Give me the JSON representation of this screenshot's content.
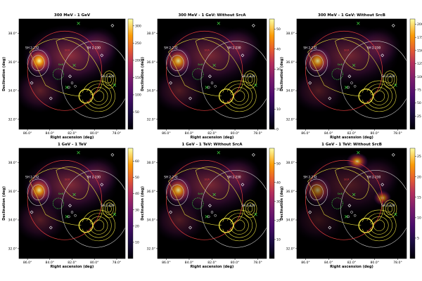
{
  "colors": {
    "background": "#000000",
    "contour_yellow": "#e6dc3c",
    "contour_grey": "#c8c8c8",
    "circle_red": "#e23c3c",
    "marker_green": "#3fd23f",
    "marker_white": "#ffffff",
    "label_white": "#ffffff"
  },
  "chart_data": [
    {
      "type": "heatmap",
      "title": "300 MeV - 1 GeV",
      "xlabel": "Right ascension (deg)",
      "ylabel": "Declination (deg)",
      "x_ticks": [
        "86.0°",
        "84.0°",
        "82.0°",
        "80.0°",
        "78.0°"
      ],
      "y_ticks": [
        "38.0°",
        "36.0°",
        "34.0°",
        "32.0°"
      ],
      "colorbar_ticks": [
        "300",
        "250",
        "200",
        "150",
        "100",
        "50"
      ],
      "colorbar_range": [
        0,
        320
      ],
      "labels": [
        "SH 2-232",
        "SH 2-230",
        "SH 2-229",
        "SrcA",
        "SrcB"
      ]
    },
    {
      "type": "heatmap",
      "title": "300 MeV - 1 GeV: Without SrcA",
      "xlabel": "Right ascension (deg)",
      "ylabel": "Declination (deg)",
      "x_ticks": [
        "86.0°",
        "84.0°",
        "82.0°",
        "80.0°",
        "78.0°"
      ],
      "y_ticks": [
        "38.0°",
        "36.0°",
        "34.0°",
        "32.0°"
      ],
      "colorbar_ticks": [
        "50",
        "40",
        "30",
        "20",
        "10",
        "0"
      ],
      "colorbar_range": [
        0,
        55
      ],
      "labels": [
        "SH 2-232",
        "SH 2-230",
        "SH 2-229",
        "SrcA",
        "SrcB"
      ]
    },
    {
      "type": "heatmap",
      "title": "300 MeV - 1 GeV: Without SrcB",
      "xlabel": "Right ascension (deg)",
      "ylabel": "Declination (deg)",
      "x_ticks": [
        "86.0°",
        "84.0°",
        "82.0°",
        "80.0°",
        "78.0°"
      ],
      "y_ticks": [
        "38.0°",
        "36.0°",
        "34.0°",
        "32.0°"
      ],
      "colorbar_ticks": [
        "200",
        "175",
        "150",
        "125",
        "100",
        "75",
        "50",
        "25"
      ],
      "colorbar_range": [
        0,
        210
      ],
      "labels": [
        "SH 2-232",
        "SH 2-230",
        "SH 2-229",
        "SrcA",
        "SrcB"
      ]
    },
    {
      "type": "heatmap",
      "title": "1 GeV - 1 TeV",
      "xlabel": "Right ascension (deg)",
      "ylabel": "Declination (deg)",
      "x_ticks": [
        "86.0°",
        "84.0°",
        "82.0°",
        "80.0°",
        "78.0°"
      ],
      "y_ticks": [
        "38.0°",
        "36.0°",
        "34.0°",
        "32.0°"
      ],
      "colorbar_ticks": [
        "60",
        "50",
        "40",
        "30",
        "20",
        "10"
      ],
      "colorbar_range": [
        0,
        68
      ],
      "labels": [
        "SH 2-232",
        "SH 2-230",
        "SH 2-229",
        "SrcA",
        "SrcB"
      ]
    },
    {
      "type": "heatmap",
      "title": "1 GeV - 1 TeV: Without SrcA",
      "xlabel": "Right ascension (deg)",
      "ylabel": "Declination (deg)",
      "x_ticks": [
        "86.0°",
        "84.0°",
        "82.0°",
        "80.0°",
        "78.0°"
      ],
      "y_ticks": [
        "38.0°",
        "36.0°",
        "34.0°",
        "32.0°"
      ],
      "colorbar_ticks": [
        "50",
        "40",
        "30",
        "20",
        "10"
      ],
      "colorbar_range": [
        0,
        58
      ],
      "labels": [
        "SH 2-232",
        "SH 2-230",
        "SH 2-229",
        "SrcA",
        "SrcB"
      ]
    },
    {
      "type": "heatmap",
      "title": "1 GeV - 1 TeV: Without SrcB",
      "xlabel": "Right ascension (deg)",
      "ylabel": "Declination (deg)",
      "x_ticks": [
        "86.0°",
        "84.0°",
        "82.0°",
        "80.0°",
        "78.0°"
      ],
      "y_ticks": [
        "38.0°",
        "36.0°",
        "34.0°",
        "32.0°"
      ],
      "colorbar_ticks": [
        "25",
        "20",
        "15",
        "10",
        "5"
      ],
      "colorbar_range": [
        0,
        27
      ],
      "labels": [
        "SH 2-232",
        "SH 2-230",
        "SH 2-229",
        "SrcA",
        "SrcB"
      ]
    }
  ]
}
